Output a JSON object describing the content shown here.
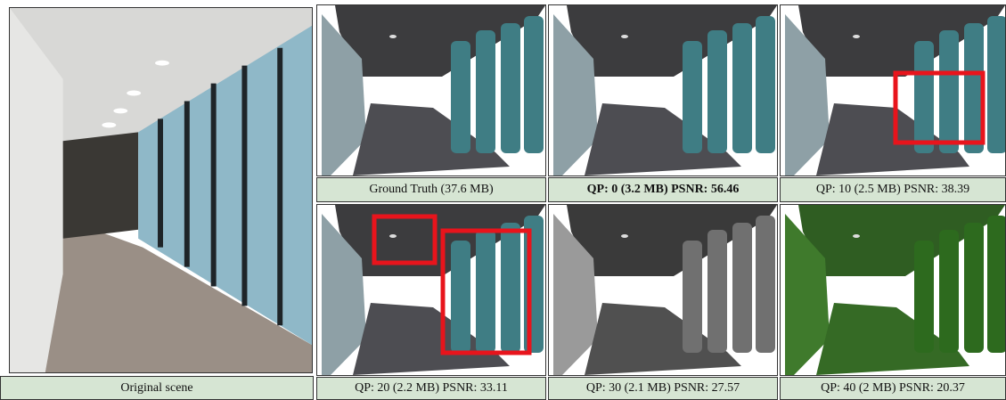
{
  "figure": {
    "panels": [
      {
        "caption": "Original scene"
      },
      {
        "caption": "Ground Truth (37.6 MB)"
      },
      {
        "caption": "QP: 0 (3.2 MB) PSNR: 56.46"
      },
      {
        "caption": "QP: 10 (2.5 MB) PSNR: 38.39"
      },
      {
        "caption": "QP: 20 (2.2 MB) PSNR: 33.11"
      },
      {
        "caption": "QP: 30 (2.1 MB) PSNR: 27.57"
      },
      {
        "caption": "QP: 40 (2 MB) PSNR: 20.37"
      }
    ]
  }
}
